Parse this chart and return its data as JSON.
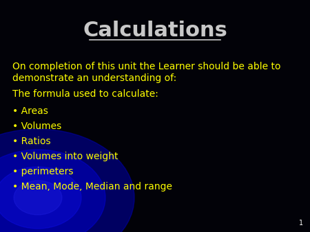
{
  "title": "Calculations",
  "title_color": "#c8c8c8",
  "title_fontsize": 22,
  "background_color": "#020208",
  "body_text_color": "#ffff00",
  "page_number": "1",
  "intro_lines": [
    "On completion of this unit the Learner should be able to",
    "demonstrate an understanding of:"
  ],
  "formula_line": "The formula used to calculate:",
  "bullets": [
    "Areas",
    "Volumes",
    "Ratios",
    "Volumes into weight",
    "perimeters",
    "Mean, Mode, Median and range"
  ],
  "text_fontsize": 10,
  "glow_color1": "#000066",
  "glow_color2": "#0000aa",
  "glow_color3": "#0033cc",
  "underline_color": "#c8c8c8"
}
